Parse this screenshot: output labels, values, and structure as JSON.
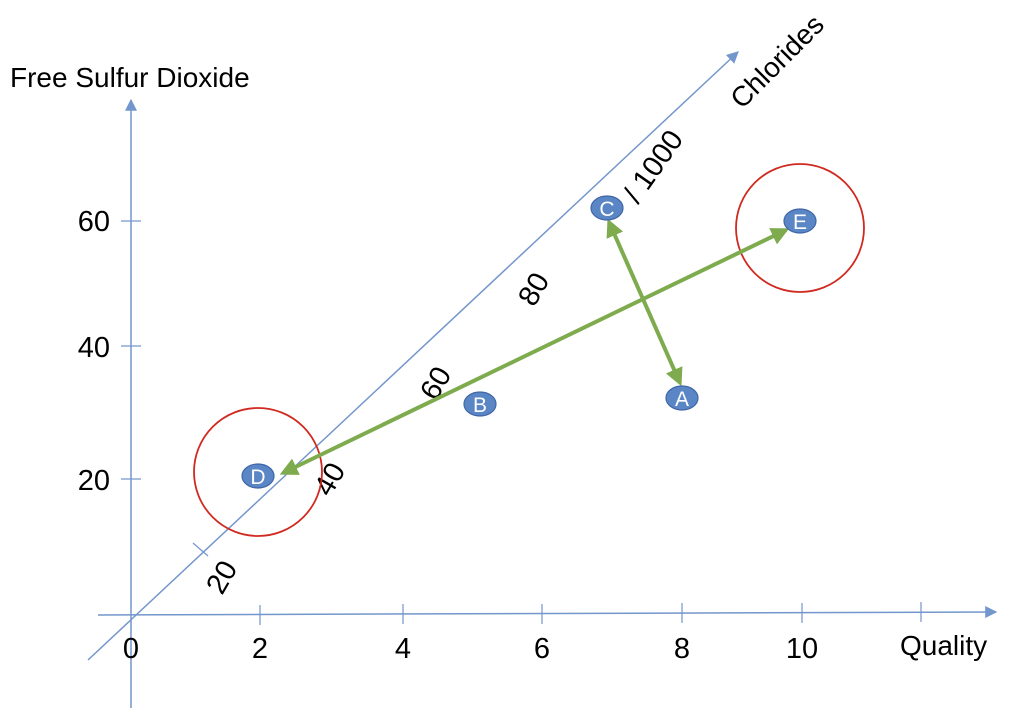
{
  "axes": {
    "y_title": "Free Sulfur Dioxide",
    "x_title": "Quality",
    "z_title": "Chlorides",
    "z_scale_note": "/ 1000",
    "origin_label": "0",
    "x_ticks": [
      "2",
      "4",
      "6",
      "8",
      "10"
    ],
    "y_ticks": [
      "20",
      "40",
      "60"
    ],
    "z_ticks": [
      "20",
      "40",
      "60",
      "80"
    ]
  },
  "points": [
    {
      "label": "A",
      "quality": 8
    },
    {
      "label": "B",
      "quality": 5
    },
    {
      "label": "C",
      "quality": 7
    },
    {
      "label": "D",
      "quality": 2
    },
    {
      "label": "E",
      "quality": 10
    }
  ],
  "highlighted_points": [
    "D",
    "E"
  ],
  "arrows": [
    {
      "from": "C",
      "to": "A",
      "bidirectional": true
    },
    {
      "from": "D",
      "to": "E",
      "bidirectional": true
    }
  ],
  "colors": {
    "axis": "#7396cc",
    "point_fill": "#5b86c6",
    "point_stroke": "#3f66a6",
    "arrow": "#7eab4d",
    "highlight_circle": "#d02a20",
    "text": "#000000"
  }
}
